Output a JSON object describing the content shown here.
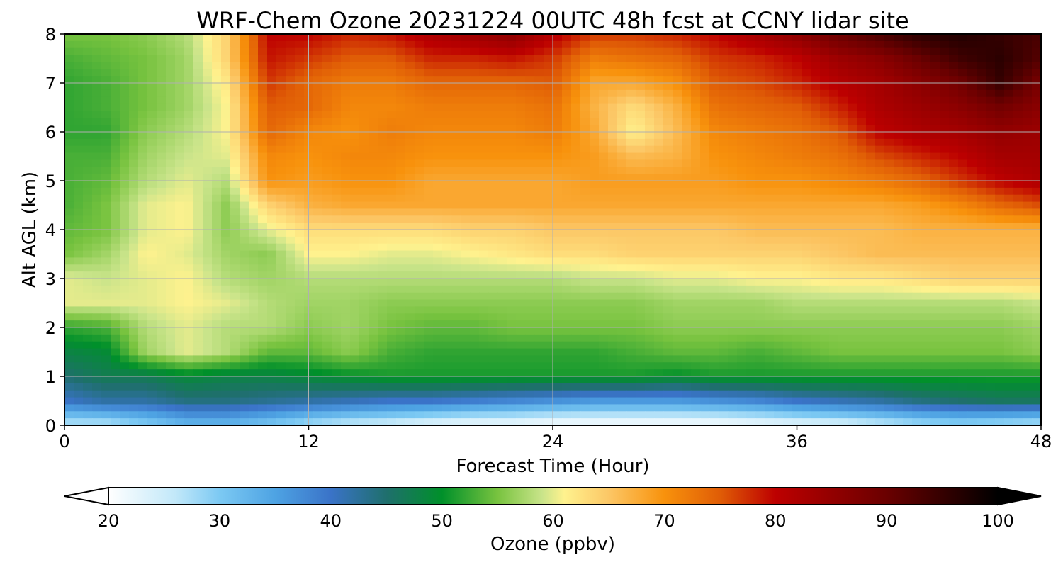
{
  "chart_data": {
    "type": "heatmap",
    "title": "WRF-Chem Ozone  20231224 00UTC 48h fcst at CCNY lidar site",
    "xlabel": "Forecast Time (Hour)",
    "ylabel": "Alt AGL (km)",
    "xlim": [
      0,
      48
    ],
    "ylim": [
      0,
      8
    ],
    "xticks": [
      "0",
      "12",
      "24",
      "36",
      "48"
    ],
    "yticks": [
      "0",
      "1",
      "2",
      "3",
      "4",
      "5",
      "6",
      "7",
      "8"
    ],
    "grid": true,
    "x": [
      0,
      2,
      4,
      6,
      8,
      10,
      12,
      14,
      16,
      18,
      20,
      22,
      24,
      26,
      28,
      30,
      32,
      34,
      36,
      38,
      40,
      42,
      44,
      46,
      48
    ],
    "y": [
      0,
      0.5,
      1,
      1.5,
      2,
      2.5,
      3,
      3.5,
      4,
      4.5,
      5,
      5.5,
      6,
      6.5,
      7,
      7.5,
      8
    ],
    "z": [
      [
        26,
        26,
        29,
        32,
        32,
        30,
        27,
        25,
        24,
        22,
        21,
        21,
        20,
        20,
        20,
        20,
        20,
        21,
        22,
        23,
        25,
        27,
        28,
        27,
        26
      ],
      [
        40,
        42,
        42,
        44,
        44,
        43,
        42,
        41,
        40,
        40,
        39,
        38,
        37,
        36,
        36,
        36,
        37,
        38,
        40,
        41,
        42,
        44,
        45,
        46,
        46
      ],
      [
        45,
        47,
        47,
        49,
        48,
        48,
        49,
        50,
        51,
        51,
        51,
        51,
        51,
        51,
        51,
        50,
        51,
        51,
        51,
        51,
        51,
        51,
        51,
        51,
        51
      ],
      [
        48,
        49,
        57,
        60,
        58,
        54,
        54,
        56,
        53,
        52,
        52,
        52,
        52,
        52,
        53,
        54,
        54,
        53,
        54,
        55,
        55,
        55,
        55,
        55,
        56
      ],
      [
        52,
        53,
        58,
        60,
        58,
        58,
        56,
        57,
        55,
        54,
        54,
        55,
        55,
        55,
        55,
        56,
        56,
        56,
        56,
        56,
        56,
        56,
        56,
        56,
        57
      ],
      [
        60,
        60,
        60,
        61,
        60,
        58,
        57,
        57,
        56,
        56,
        56,
        56,
        56,
        56,
        56,
        57,
        57,
        57,
        58,
        58,
        58,
        58,
        58,
        58,
        59
      ],
      [
        60,
        59,
        60,
        61,
        58,
        57,
        58,
        58,
        58,
        58,
        58,
        58,
        58,
        59,
        59,
        60,
        60,
        61,
        61,
        62,
        62,
        63,
        64,
        64,
        64
      ],
      [
        55,
        57,
        61,
        60,
        57,
        56,
        61,
        61,
        60,
        60,
        61,
        62,
        63,
        63,
        64,
        64,
        64,
        64,
        64,
        65,
        66,
        66,
        66,
        66,
        66
      ],
      [
        54,
        55,
        60,
        61,
        56,
        60,
        63,
        63,
        63,
        63,
        64,
        64,
        65,
        65,
        65,
        65,
        65,
        66,
        66,
        66,
        66,
        67,
        67,
        67,
        67
      ],
      [
        53,
        55,
        60,
        61,
        56,
        64,
        67,
        68,
        68,
        68,
        68,
        68,
        68,
        68,
        68,
        68,
        68,
        68,
        68,
        68,
        68,
        69,
        71,
        74,
        76
      ],
      [
        53,
        54,
        58,
        60,
        58,
        70,
        69,
        70,
        70,
        68,
        68,
        68,
        68,
        69,
        69,
        69,
        69,
        70,
        70,
        71,
        72,
        74,
        77,
        80,
        82
      ],
      [
        53,
        53,
        57,
        59,
        60,
        71,
        70,
        71,
        71,
        70,
        70,
        70,
        70,
        69,
        66,
        67,
        70,
        71,
        72,
        73,
        76,
        78,
        80,
        83,
        83
      ],
      [
        52,
        52,
        56,
        58,
        61,
        74,
        71,
        70,
        72,
        71,
        71,
        71,
        72,
        68,
        61,
        66,
        71,
        72,
        73,
        75,
        80,
        82,
        83,
        85,
        84
      ],
      [
        52,
        53,
        55,
        57,
        61,
        75,
        74,
        71,
        71,
        72,
        72,
        72,
        73,
        67,
        63,
        67,
        73,
        74,
        75,
        78,
        82,
        84,
        86,
        89,
        86
      ],
      [
        52,
        53,
        55,
        57,
        62,
        77,
        74,
        72,
        72,
        74,
        74,
        74,
        75,
        68,
        68,
        70,
        75,
        76,
        78,
        81,
        83,
        86,
        89,
        95,
        88
      ],
      [
        53,
        54,
        55,
        57,
        64,
        79,
        77,
        75,
        75,
        78,
        78,
        79,
        77,
        72,
        73,
        74,
        77,
        78,
        80,
        84,
        86,
        90,
        94,
        96,
        92
      ],
      [
        55,
        55,
        56,
        58,
        64,
        80,
        80,
        78,
        79,
        82,
        84,
        86,
        81,
        77,
        77,
        78,
        80,
        83,
        86,
        90,
        93,
        96,
        97,
        95,
        93
      ]
    ],
    "colorbar": {
      "label": "Ozone  (ppbv)",
      "ticks": [
        "20",
        "30",
        "40",
        "50",
        "60",
        "70",
        "80",
        "90",
        "100"
      ],
      "range": [
        20,
        100
      ],
      "extend": "both",
      "colormap_stops": [
        [
          20,
          "#ffffff"
        ],
        [
          26,
          "#c2e8f9"
        ],
        [
          30,
          "#7cc9f3"
        ],
        [
          35,
          "#4ea3e3"
        ],
        [
          40,
          "#3a73c8"
        ],
        [
          45,
          "#1f6f6d"
        ],
        [
          50,
          "#00902a"
        ],
        [
          55,
          "#78c33f"
        ],
        [
          59,
          "#c9e48a"
        ],
        [
          61,
          "#fff28e"
        ],
        [
          65,
          "#fcc766"
        ],
        [
          70,
          "#f8920c"
        ],
        [
          75,
          "#e05d06"
        ],
        [
          80,
          "#bd0000"
        ],
        [
          90,
          "#6a0000"
        ],
        [
          100,
          "#000000"
        ]
      ]
    }
  }
}
